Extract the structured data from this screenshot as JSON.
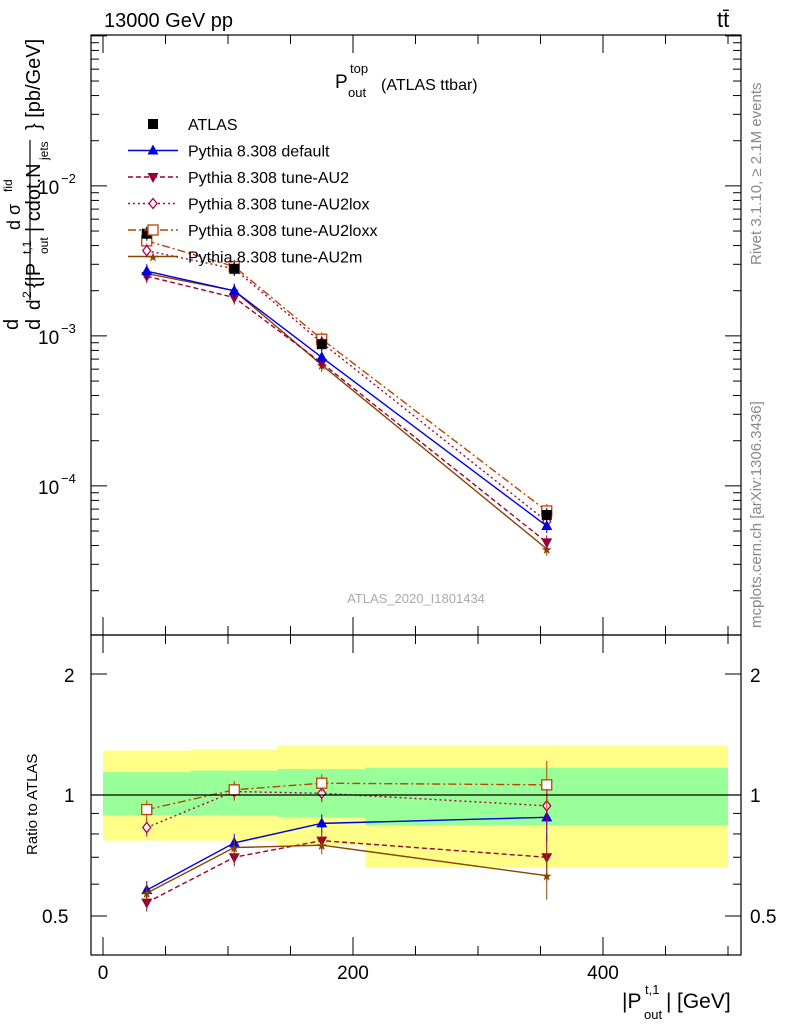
{
  "header": {
    "energy": "13000 GeV pp",
    "process": "tt̄"
  },
  "top_panel": {
    "title_main": "P",
    "title_sup": "top",
    "title_sub": "out",
    "title_tail": "(ATLAS ttbar)",
    "ylabel_ticks": [
      "10",
      "10",
      "10"
    ],
    "ylabel_tick_exps": [
      "−2",
      "−3",
      "−4"
    ],
    "watermark": "ATLAS_2020_I1801434"
  },
  "side_labels": {
    "rivet": "Rivet 3.1.10, ≥ 2.1M events",
    "mcplots": "mcplots.cern.ch [arXiv:1306.3436]"
  },
  "ratio_panel": {
    "ylabel": "Ratio to ATLAS",
    "yticks": [
      "2",
      "1",
      "0.5"
    ]
  },
  "xaxis": {
    "ticks": [
      "0",
      "200",
      "400"
    ],
    "unit": "[GeV]"
  },
  "colors": {
    "atlas": "#000000",
    "default": "#0000dd",
    "au2": "#990033",
    "au2lox": "#aa0044",
    "au2loxx": "#bb4400",
    "au2m": "#884400",
    "band_inner": "#99ff99",
    "band_outer": "#ffff88"
  },
  "chart_data": {
    "type": "line",
    "x": [
      35,
      105,
      175,
      355
    ],
    "x_bin_edges": [
      0,
      70,
      140,
      210,
      500
    ],
    "xlim": [
      -10,
      510
    ],
    "ylim_main": [
      1e-05,
      0.1
    ],
    "yscale_main": "log",
    "ylim_ratio": [
      0.4,
      2.4
    ],
    "yscale_ratio": "log",
    "legend_position": "top-left",
    "series": [
      {
        "name": "ATLAS",
        "key": "atlas",
        "marker": "square-filled",
        "values": [
          0.0048,
          0.0028,
          0.00088,
          6.4e-05
        ]
      },
      {
        "name": "Pythia 8.308 default",
        "key": "default",
        "marker": "triangle-up",
        "values": [
          0.0027,
          0.002,
          0.00072,
          5.4e-05
        ],
        "ratio": [
          0.58,
          0.76,
          0.85,
          0.88
        ]
      },
      {
        "name": "Pythia 8.308 tune-AU2",
        "key": "au2",
        "marker": "triangle-down",
        "values": [
          0.0025,
          0.0018,
          0.00066,
          4.2e-05
        ],
        "ratio": [
          0.54,
          0.7,
          0.77,
          0.7
        ]
      },
      {
        "name": "Pythia 8.308 tune-AU2lox",
        "key": "au2lox",
        "marker": "diamond-open",
        "values": [
          0.0037,
          0.0028,
          0.0009,
          5.8e-05
        ],
        "ratio": [
          0.83,
          1.02,
          1.01,
          0.94
        ]
      },
      {
        "name": "Pythia 8.308 tune-AU2loxx",
        "key": "au2loxx",
        "marker": "square-open",
        "values": [
          0.0043,
          0.0029,
          0.00095,
          6.8e-05
        ],
        "ratio": [
          0.92,
          1.03,
          1.07,
          1.06
        ]
      },
      {
        "name": "Pythia 8.308 tune-AU2m",
        "key": "au2m",
        "marker": "star",
        "values": [
          0.0026,
          0.002,
          0.00064,
          3.8e-05
        ],
        "ratio": [
          0.57,
          0.74,
          0.75,
          0.63
        ]
      }
    ],
    "ratio_band": {
      "inner_lo": [
        0.89,
        0.89,
        0.88,
        0.84
      ],
      "inner_hi": [
        1.14,
        1.15,
        1.16,
        1.17
      ],
      "outer_lo": [
        0.77,
        0.77,
        0.75,
        0.66
      ],
      "outer_hi": [
        1.29,
        1.3,
        1.33,
        1.33
      ]
    }
  }
}
